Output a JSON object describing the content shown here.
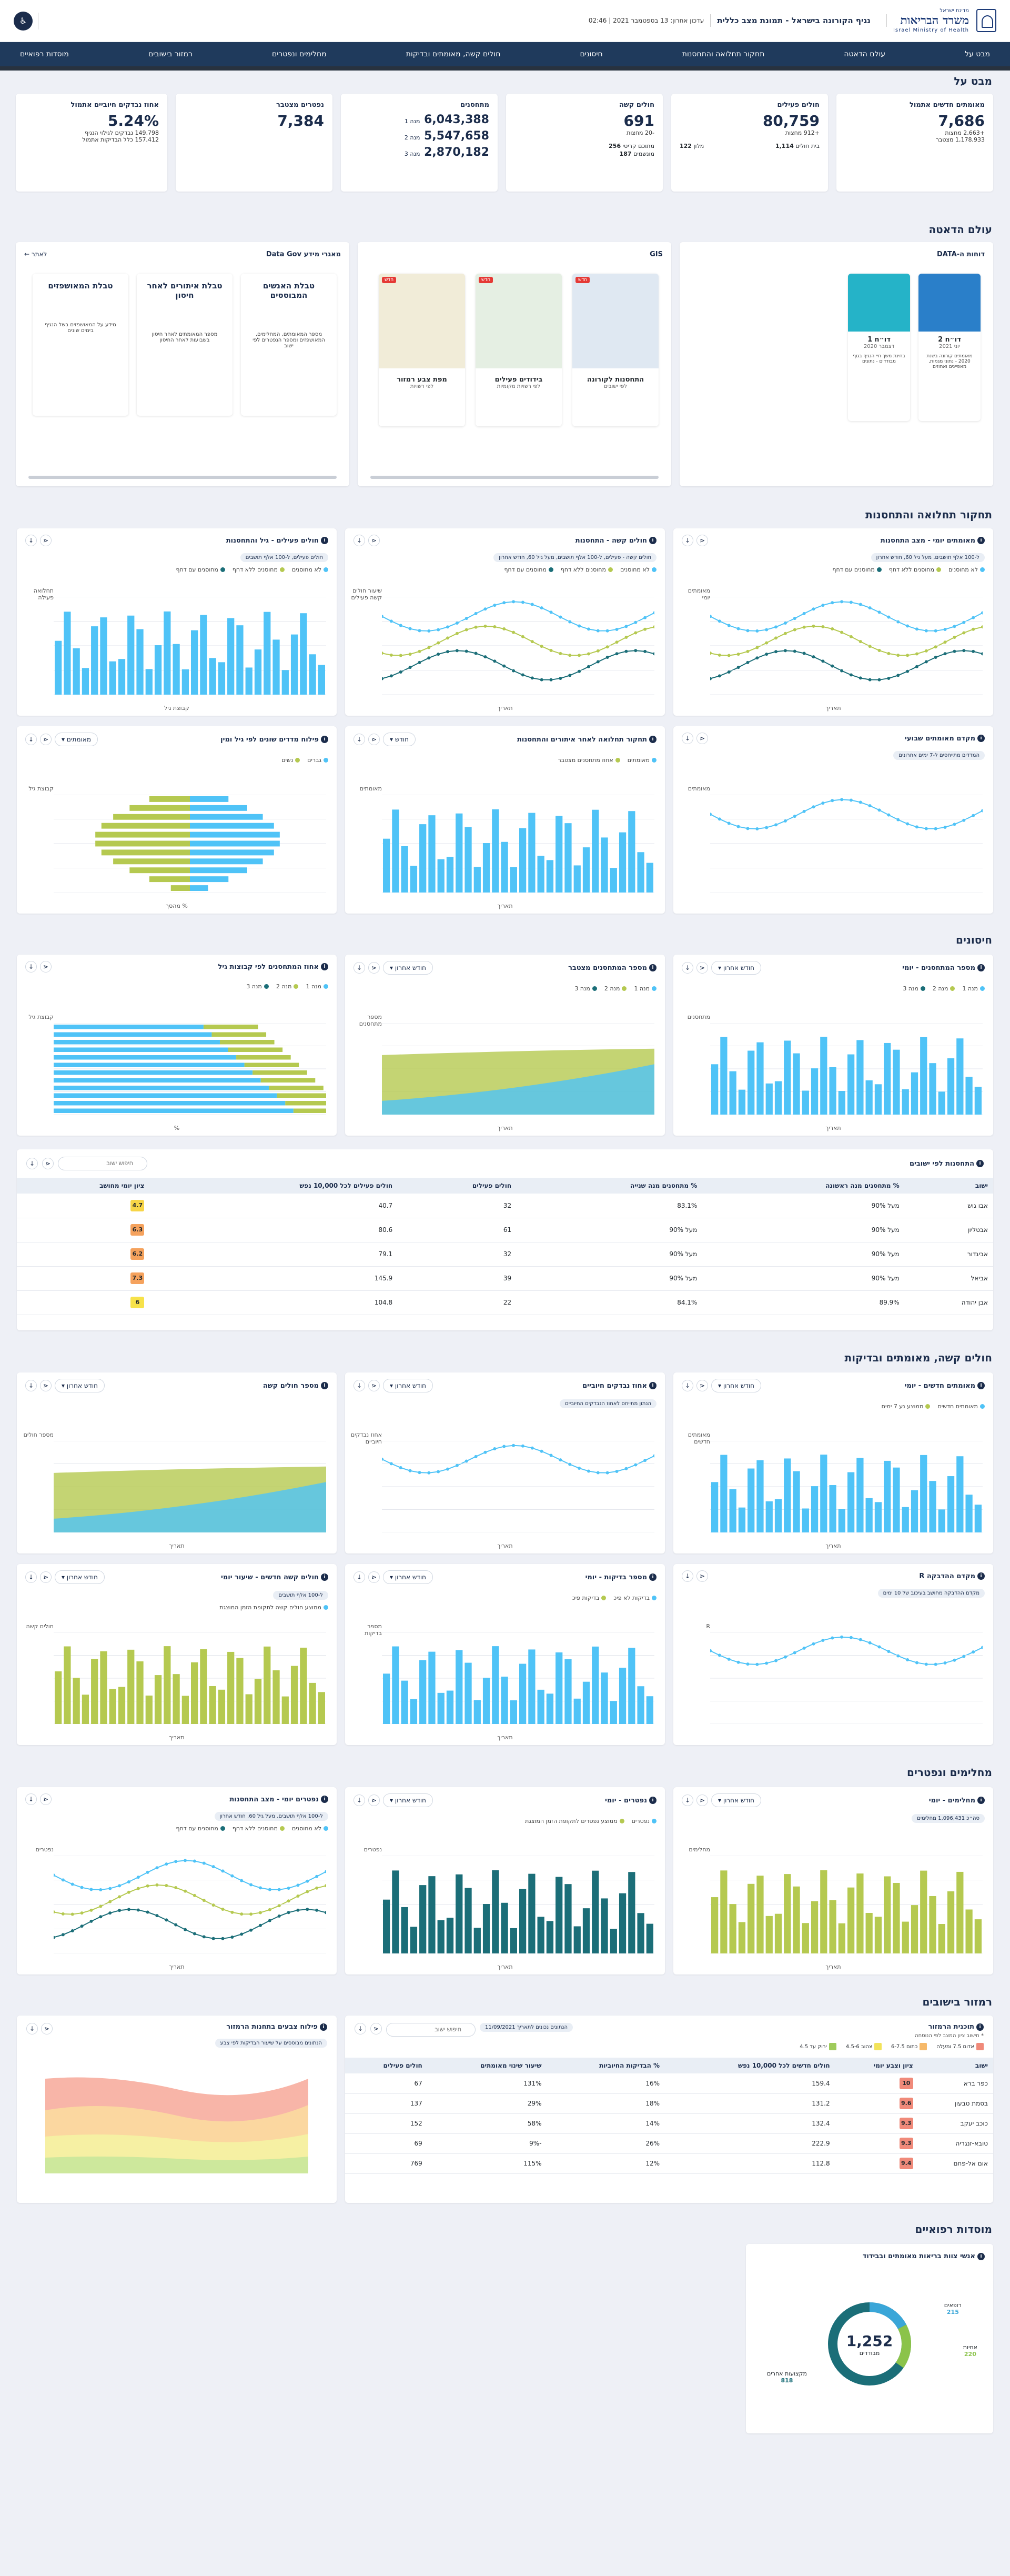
{
  "header": {
    "ministry_small": "מדינת ישראל",
    "ministry_name": "משרד הבריאות",
    "ministry_en": "Israel Ministry of Health",
    "title": "נגיף הקורונה בישראל - תמונת מצב כללית",
    "updated": "עדכון אחרון: 13 בספטמבר 2021 | 02:46",
    "menu_icon": "accessibility-icon",
    "brand_color": "#1b2c4b"
  },
  "nav": {
    "items": [
      "מבט על",
      "עולם הדאטה",
      "תחקור תחלואה והתחסנות",
      "חיסונים",
      "חולים קשה, מאומתים ובדיקות",
      "מחלימים ונפטרים",
      "רמזור בישובים",
      "מוסדות רפואיים"
    ]
  },
  "sections": {
    "overview": "מבט על",
    "data_world": "עולם הדאטה",
    "morbidity": "תחקור תחלואה והתחסנות",
    "vaccines": "חיסונים",
    "severe": "חולים קשה, מאומתים ובדיקות",
    "recovered": "מחלימים ונפטרים",
    "traffic": "רמזור בישובים",
    "medical": "מוסדות רפואיים"
  },
  "kpis": {
    "new_verified": {
      "label": "מאומתים חדשים אתמול",
      "value": "7,686",
      "sub1": "+2,663 מחצות",
      "sub2": "1,178,933 מצטבר"
    },
    "active": {
      "label": "חולים פעילים",
      "value": "80,759",
      "sub1": "+912 מחצות",
      "r1a": "בית חולים",
      "r1b": "1,114",
      "r2a": "מלון",
      "r2b": "122"
    },
    "severe": {
      "label": "חולים קשה",
      "value": "691",
      "sub1": "-20 מחצות",
      "r1a": "מתוכם קריטי",
      "r1b": "256",
      "r2a": "מונשמים",
      "r2b": "187"
    },
    "vaccinated": {
      "label": "מתחסנים",
      "d1": "6,043,388",
      "d1l": "מנה 1",
      "d2": "5,547,658",
      "d2l": "מנה 2",
      "d3": "2,870,182",
      "d3l": "מנה 3"
    },
    "deceased": {
      "label": "נפטרים מצטבר",
      "value": "7,384"
    },
    "positive_rate": {
      "label": "אחוז נבדקים חיוביים אתמול",
      "value": "5.24%",
      "sub1": "149,798 נבדקים לגילוי הנגיף",
      "sub2": "157,412 כלל הבדיקות אתמול"
    }
  },
  "data_world": {
    "dashboard_label": "דוחות ה-DATA",
    "reports": [
      {
        "title": "דו״ח 2",
        "date": "יוני 2021",
        "desc": "מאומתים קורונה בשנת 2020 - נתוני מגמות, מאפיינים ואחוזים"
      },
      {
        "title": "דו״ח 1",
        "date": "דצמבר 2020",
        "desc": "בחינת משך חיי הנגיף בגוף מבודדים - נתונים"
      }
    ],
    "gis_label": "GIS",
    "gis": [
      {
        "title": "התחסנות לקורונה",
        "sub": "לפי ישובים",
        "badge": "חדש"
      },
      {
        "title": "בידודים פעילים",
        "sub": "לפי רשויות מקומיות",
        "badge": "חדש"
      },
      {
        "title": "מפת צבע רמזור",
        "sub": "לפי רשויות",
        "badge": "חדש"
      }
    ],
    "gov_label": "מאגרי מידע Data Gov",
    "gov_more": "לאתר",
    "gov": [
      {
        "title": "טבלת האנשים המבוססים",
        "desc": "מספר המאומתים, המחלימים, המאושפזים ומספר הנפטרים לפי ישוב"
      },
      {
        "title": "טבלת איתורים לאחר חיסון",
        "desc": "מספר המאומתים לאחר חיסון בשבועות לאחר החיסון"
      },
      {
        "title": "טבלת המאושפזים",
        "desc": "מידע על המאושפזים בשל הנגיף בימים שונים"
      }
    ]
  },
  "charts": {
    "c1": {
      "title": "מאומתים יומי - מצב התחסנות",
      "note": "ל-100 אלף תושבים, מעל גיל 60, חודש אחרון",
      "l1": "לא מחוסנים",
      "l2": "מחוסנים ללא דחף",
      "l3": "מחוסנים עם דחף",
      "ylabel": "מאומתים יומי",
      "xlabel": "תאריך"
    },
    "c2": {
      "title": "חולים קשה - התחסנות",
      "note": "חולים קשה - פעילים, ל-100 אלף תושבים, מעל גיל 60, חודש אחרון",
      "l1": "לא מחוסנים",
      "l2": "מחוסנים ללא דחף",
      "l3": "מחוסנים עם דחף",
      "ylabel": "שיעור חולים קשה פעילים",
      "xlabel": "תאריך"
    },
    "c3": {
      "title": "חולים פעילים - גיל והתחסנות",
      "note": "חולים פעילים, ל-100 אלף תושבים",
      "l1": "לא מחוסנים",
      "l2": "מחוסנים ללא דחף",
      "l3": "מחוסנים עם דחף",
      "ylabel": "תחלואה פעילה",
      "xlabel": "קבוצת גיל"
    },
    "c4": {
      "title": "מקדם מאומתים שבועי",
      "note": "המדדים מתייחסים ל-7 ימים אחרונים",
      "ylabel": "מאומתים",
      "xlabel": ""
    },
    "c5": {
      "title": "תחקור תחלואה לאחר איתורים והתחסנות",
      "dd": "חודש",
      "l1": "מאומתים",
      "l2": "אחוז מתחסנים מצטבר",
      "ylabel": "מאומתים",
      "xlabel": "תאריך"
    },
    "c6": {
      "title": "פילוח מדדים שונים לפי גיל ומין",
      "dd": "מאומתים",
      "l1": "גברים",
      "l2": "נשים",
      "ylabel": "קבוצת גיל",
      "xlabel": "% מהסך"
    },
    "c7": {
      "title": "מספר המתחסנים - יומי",
      "dd": "חודש אחרון",
      "l1": "מנה 1",
      "l2": "מנה 2",
      "l3": "מנה 3",
      "ylabel": "מתחסנים",
      "xlabel": "תאריך"
    },
    "c8": {
      "title": "מספר המתחסנים מצטבר",
      "dd": "חודש אחרון",
      "l1": "מנה 1",
      "l2": "מנה 2",
      "l3": "מנה 3",
      "ylabel": "מספר מתחסנים",
      "xlabel": "תאריך"
    },
    "c9": {
      "title": "אחוז המתחסנים לפי קבוצות גיל",
      "l1": "מנה 1",
      "l2": "מנה 2",
      "l3": "מנה 3",
      "ylabel": "קבוצת גיל",
      "xlabel": "%"
    },
    "c10": {
      "title": "מאומתים חדשים - יומי",
      "dd": "חודש אחרון",
      "l1": "מאומתים חדשים",
      "l2": "ממוצע נע 7 ימים",
      "ylabel": "מאומתים חדשים",
      "xlabel": "תאריך"
    },
    "c11": {
      "title": "אחוז נבדקים חיוביים",
      "dd": "חודש אחרון",
      "note": "הנתון מתייחס לאחוז הנבדקים החיוביים",
      "ylabel": "אחוז נבדקים חיוביים",
      "xlabel": "תאריך"
    },
    "c12": {
      "title": "מספר חולים קשה",
      "dd": "חודש אחרון",
      "ylabel": "מספר חולים",
      "xlabel": "תאריך"
    },
    "c13": {
      "title": "מקדם ההדבקה R",
      "note": "מקדם ההדבקה מחושב בעיכוב של 10 ימים",
      "ylabel": "R",
      "xlabel": ""
    },
    "c14": {
      "title": "מספר בדיקות - יומי",
      "dd": "חודש אחרון",
      "l1": "בדיקות לא פיכ",
      "l2": "בדיקות פיכ",
      "ylabel": "מספר בדיקות",
      "xlabel": "תאריך"
    },
    "c15": {
      "title": "חולים קשה חדשים - שיעור יומי",
      "dd": "חודש אחרון",
      "note": "ל-100 אלף תושבים",
      "l1": "ממוצע חולים קשה לתקופת הזמן המוצגת",
      "ylabel": "חולים קשה",
      "xlabel": "תאריך"
    },
    "c16": {
      "title": "מחלימים - יומי",
      "dd": "חודש אחרון",
      "note": "סה״כ 1,096,431 מחלימים",
      "ylabel": "מחלימים",
      "xlabel": "תאריך"
    },
    "c17": {
      "title": "נפטרים - יומי",
      "dd": "חודש אחרון",
      "l1": "נפטרים",
      "l2": "ממוצע נפטרים לתקופת הזמן המוצגת",
      "ylabel": "נפטרים",
      "xlabel": "תאריך"
    },
    "c18": {
      "title": "נפטרים יומי - מצב התחסנות",
      "note": "ל-100 אלף תושבים, מעל גיל 60, חודש אחרון",
      "l1": "לא מחוסנים",
      "l2": "מחוסנים ללא דחף",
      "l3": "מחוסנים עם דחף",
      "ylabel": "נפטרים",
      "xlabel": "תאריך"
    }
  },
  "cities": {
    "title": "התחסנות לפי ישובים",
    "search_placeholder": "חיפוש ישוב",
    "columns": [
      "ישוב",
      "% מתחסנים מנה ראשונה",
      "% מתחסנים מנה שנייה",
      "חולים פעילים",
      "חולים פעילים לכל 10,000 נפש",
      "ציון יומי מחושב"
    ],
    "rows": [
      {
        "name": "אבו גוש",
        "d1": "מעל 90%",
        "d2": "83.1%",
        "active": "32",
        "per10k": "40.7",
        "score": "4.7",
        "color": "#f7d547"
      },
      {
        "name": "אבטליון",
        "d1": "מעל 90%",
        "d2": "מעל 90%",
        "active": "61",
        "per10k": "80.6",
        "score": "6.3",
        "color": "#f5a25d"
      },
      {
        "name": "אביגדור",
        "d1": "מעל 90%",
        "d2": "מעל 90%",
        "active": "32",
        "per10k": "79.1",
        "score": "6.2",
        "color": "#f5a25d"
      },
      {
        "name": "אביאל",
        "d1": "מעל 90%",
        "d2": "מעל 90%",
        "active": "39",
        "per10k": "145.9",
        "score": "7.3",
        "color": "#f5a25d"
      },
      {
        "name": "אבן יהודה",
        "d1": "89.9%",
        "d2": "84.1%",
        "active": "22",
        "per10k": "104.8",
        "score": "6",
        "color": "#f7e24a"
      }
    ]
  },
  "traffic": {
    "card1_title": "תוכנית הרמזור",
    "card1_sub": "* חישוב ציון המצב לפי הנוסחה",
    "legend": [
      "אדום 7.5 ומעלה",
      "כתום 6-7.5",
      "צהוב 4.5-6",
      "ירוק עד 4.5"
    ],
    "search_placeholder": "חיפוש ישוב",
    "date_pill": "הנתונים נכונים לתאריך 11/09/2021",
    "columns": [
      "ישוב",
      "ציון וצבע יומי",
      "חולים חדשים לכל 10,000 נפש",
      "% הבדיקות החיוביות",
      "שיעור שינוי מאומתים",
      "חולים פעילים"
    ],
    "rows": [
      {
        "name": "כפר ברא",
        "score": "10",
        "new": "159.4",
        "pos": "16%",
        "chg": "131%",
        "active": "67"
      },
      {
        "name": "בסמת טבעון",
        "score": "9.6",
        "new": "131.2",
        "pos": "18%",
        "chg": "29%",
        "active": "137"
      },
      {
        "name": "כוכב יעקב",
        "score": "9.3",
        "new": "132.4",
        "pos": "14%",
        "chg": "58%",
        "active": "152"
      },
      {
        "name": "טובא-זנגריה",
        "score": "9.3",
        "new": "222.9",
        "pos": "26%",
        "chg": "-9%",
        "active": "69"
      },
      {
        "name": "אום אל-פחם",
        "score": "9.4",
        "new": "112.8",
        "pos": "12%",
        "chg": "115%",
        "active": "769"
      }
    ],
    "card2_title": "פילוח צבעים בתחנות הרמזור",
    "card2_note": "הנתונים מבוססים על שיעור הבדיקות לפי צבע",
    "red": "#f8b5a8",
    "orange": "#fbd7a0",
    "yellow": "#f6f0a3",
    "green": "#cde89c"
  },
  "medical": {
    "title": "אנשי צוות בריאות מאומתים ובבידוד",
    "total": "1,252",
    "total_lbl": "מבודדים",
    "parts": [
      {
        "label": "רופאים",
        "value": "215"
      },
      {
        "label": "אחיות",
        "value": "220"
      },
      {
        "label": "מקצועות אחרים",
        "value": "818"
      }
    ],
    "c1": "#3aa6d8",
    "c2": "#8bc34a",
    "c3": "#1b6e78"
  },
  "colors": {
    "navy": "#1b2c4b",
    "light_blue": "#4fc3f7",
    "olive": "#b5c950",
    "teal": "#1b6e78",
    "accent_blue": "#3aa6d8"
  }
}
